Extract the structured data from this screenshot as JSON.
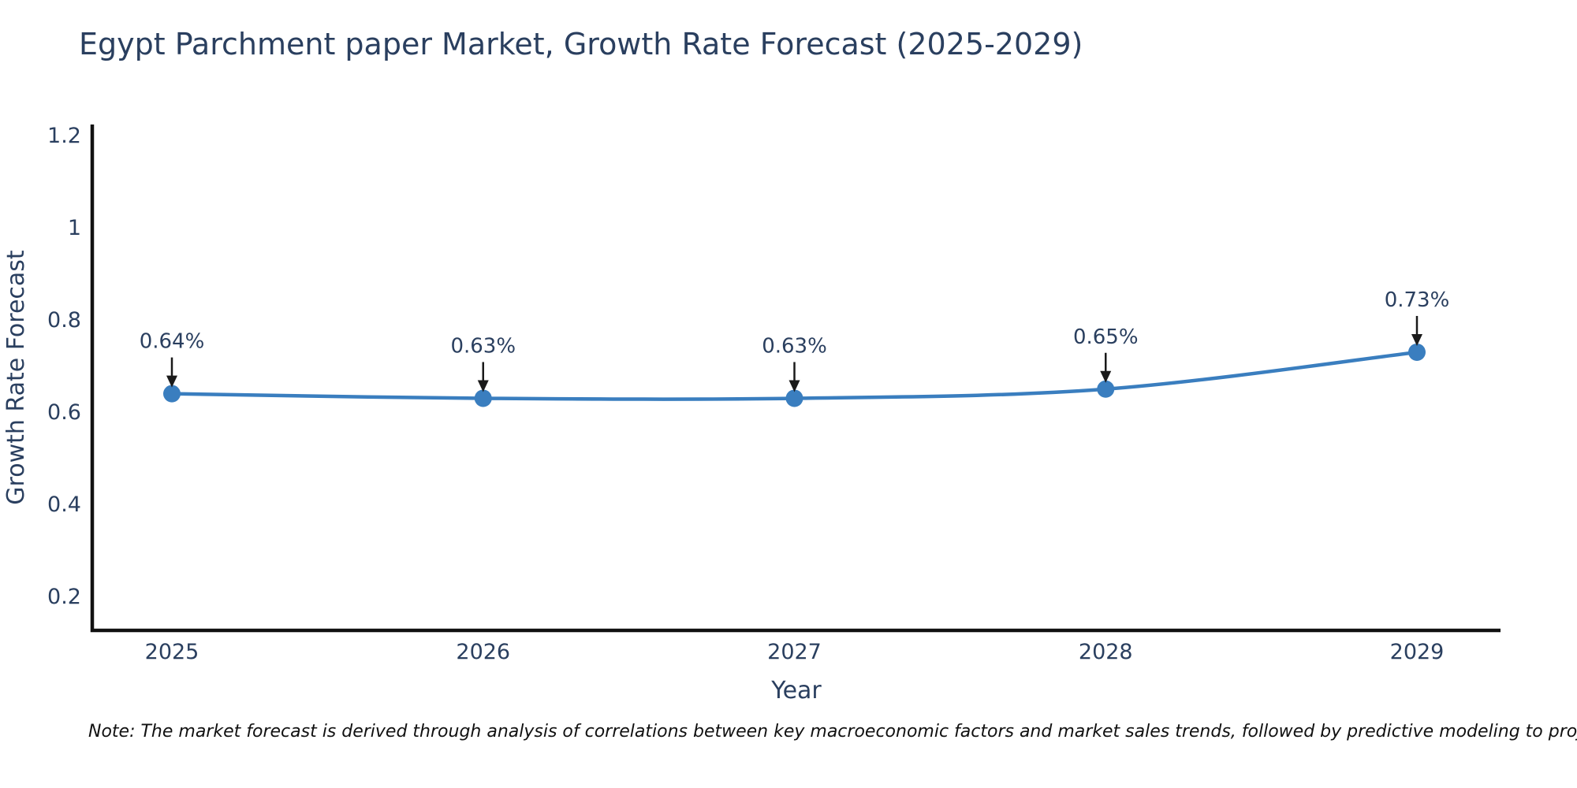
{
  "title": "Egypt Parchment paper Market, Growth Rate Forecast (2025-2029)",
  "note": "Note: The market forecast is derived through analysis of correlations between key macroeconomic factors and market sales trends, followed by predictive modeling to project future sales",
  "colors": {
    "background": "#ffffff",
    "title_text": "#2a3f5f",
    "axis_text": "#2a3f5f",
    "axis_line": "#111111",
    "line": "#3a7ebf",
    "marker": "#3a7ebf",
    "annotation_text": "#2a3f5f",
    "annotation_arrow": "#1a1a1a",
    "note_text": "#111111"
  },
  "chart_data": {
    "type": "line",
    "title": "Egypt Parchment paper Market, Growth Rate Forecast (2025-2029)",
    "x": [
      "2025",
      "2026",
      "2027",
      "2028",
      "2029"
    ],
    "series": [
      {
        "name": "Growth Rate Forecast",
        "values": [
          0.64,
          0.63,
          0.63,
          0.65,
          0.73
        ]
      }
    ],
    "point_labels": [
      "0.64%",
      "0.63%",
      "0.63%",
      "0.65%",
      "0.73%"
    ],
    "xlabel": "Year",
    "ylabel": "Growth Rate Forecast",
    "y_ticks": [
      0.2,
      0.4,
      0.6,
      0.8,
      1,
      1.2
    ],
    "ylim": [
      0.13,
      1.22
    ],
    "xlim_padding_years": [
      0.26,
      0.27
    ],
    "grid": false,
    "legend": "none",
    "line_shape": "spline",
    "marker_style": "circle"
  }
}
